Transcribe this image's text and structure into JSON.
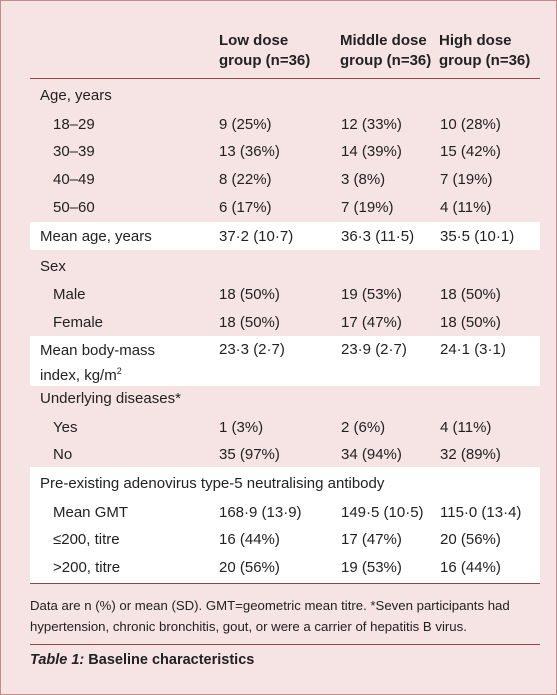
{
  "headers": {
    "low": [
      "Low dose",
      "group (n=36)"
    ],
    "middle": [
      "Middle dose",
      "group (n=36)"
    ],
    "high": [
      "High dose",
      "group (n=36)"
    ]
  },
  "rows": [
    {
      "label": "Age, years",
      "section": true
    },
    {
      "label": "18–29",
      "low": "9 (25%)",
      "mid": "12 (33%)",
      "high": "10 (28%)"
    },
    {
      "label": "30–39",
      "low": "13 (36%)",
      "mid": "14 (39%)",
      "high": "15 (42%)"
    },
    {
      "label": "40–49",
      "low": "8 (22%)",
      "mid": "3 (8%)",
      "high": "7 (19%)"
    },
    {
      "label": "50–60",
      "low": "6 (17%)",
      "mid": "7 (19%)",
      "high": "4 (11%)"
    },
    {
      "label": "Mean age, years",
      "low": "37·2 (10·7)",
      "mid": "36·3 (11·5)",
      "high": "35·5 (10·1)"
    },
    {
      "label": "Sex",
      "section": true
    },
    {
      "label": "Male",
      "low": "18 (50%)",
      "mid": "19 (53%)",
      "high": "18 (50%)"
    },
    {
      "label": "Female",
      "low": "18 (50%)",
      "mid": "17 (47%)",
      "high": "18 (50%)"
    },
    {
      "label_line1": "Mean body-mass",
      "label_line2": "index, kg/m",
      "label_sup": "2",
      "low": "23·3 (2·7)",
      "mid": "23·9 (2·7)",
      "high": "24·1 (3·1)"
    },
    {
      "label": "Underlying diseases*",
      "section": true
    },
    {
      "label": "Yes",
      "low": "1 (3%)",
      "mid": "2 (6%)",
      "high": "4 (11%)"
    },
    {
      "label": "No",
      "low": "35 (97%)",
      "mid": "34 (94%)",
      "high": "32 (89%)"
    },
    {
      "label": "Pre-existing adenovirus type-5 neutralising antibody",
      "section": true
    },
    {
      "label": "Mean GMT",
      "low": "168·9 (13·9)",
      "mid": "149·5 (10·5)",
      "high": "115·0 (13·4)"
    },
    {
      "label": "≤200, titre",
      "low": "16 (44%)",
      "mid": "17 (47%)",
      "high": "20 (56%)"
    },
    {
      "label": ">200, titre",
      "low": "20 (56%)",
      "mid": "19 (53%)",
      "high": "16 (44%)"
    }
  ],
  "footnote": "Data are n (%) or mean (SD). GMT=geometric mean titre. *Seven participants had hypertension, chronic bronchitis, gout, or were a carrier of hepatitis B virus.",
  "caption": {
    "italic": "Table 1:",
    "text": " Baseline characteristics"
  }
}
